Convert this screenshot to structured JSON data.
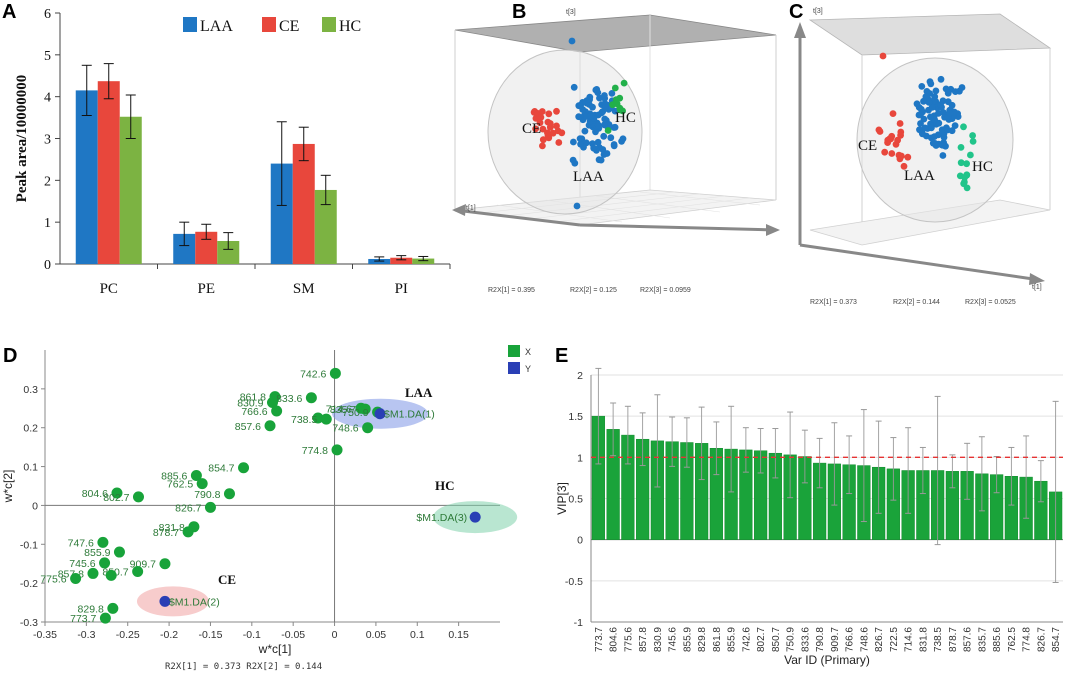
{
  "colors": {
    "laa": "#1f77c4",
    "ce": "#e8473c",
    "hc": "#7cb342",
    "pls_green": "#18a33a",
    "pls_blue": "#2a3fb5",
    "vip_bar": "#1aa33a",
    "dash": "#e63333",
    "hc_teal": "#21c48a"
  },
  "panels": {
    "a": {
      "letter": "A"
    },
    "b": {
      "letter": "B",
      "stats": [
        "R2X[1] = 0.395",
        "R2X[2] = 0.125",
        "R2X[3] = 0.0959"
      ],
      "axis": {
        "t1": "t[1]",
        "t3": "t[3]"
      },
      "labels": {
        "ce": "CE",
        "hc": "HC",
        "laa": "LAA"
      }
    },
    "c": {
      "letter": "C",
      "stats": [
        "R2X[1] = 0.373",
        "R2X[2] = 0.144",
        "R2X[3] = 0.0525"
      ],
      "axis": {
        "t1": "t[1]",
        "t3": "t[3]"
      },
      "labels": {
        "ce": "CE",
        "hc": "HC",
        "laa": "LAA"
      }
    },
    "d": {
      "letter": "D",
      "footer": "R2X[1] = 0.373 R2X[2] = 0.144",
      "legend": [
        {
          "key": "X",
          "color": "#18a33a"
        },
        {
          "key": "Y",
          "color": "#2a3fb5"
        }
      ],
      "group_labels": {
        "laa": "LAA",
        "hc": "HC",
        "ce": "CE"
      }
    },
    "e": {
      "letter": "E"
    }
  },
  "chart_data": [
    {
      "id": "A",
      "type": "bar",
      "title": "",
      "xlabel": "",
      "ylabel": "Peak area/10000000",
      "ylim": [
        0,
        6
      ],
      "yticks": [
        0,
        1,
        2,
        3,
        4,
        5,
        6
      ],
      "categories": [
        "PC",
        "PE",
        "SM",
        "PI"
      ],
      "series": [
        {
          "name": "LAA",
          "color": "#1f77c4",
          "values": [
            4.15,
            0.72,
            2.4,
            0.12
          ],
          "errors": [
            0.6,
            0.28,
            1.0,
            0.05
          ]
        },
        {
          "name": "CE",
          "color": "#e8473c",
          "values": [
            4.37,
            0.77,
            2.87,
            0.15
          ],
          "errors": [
            0.42,
            0.18,
            0.4,
            0.05
          ]
        },
        {
          "name": "HC",
          "color": "#7cb342",
          "values": [
            3.52,
            0.55,
            1.77,
            0.13
          ],
          "errors": [
            0.52,
            0.2,
            0.35,
            0.05
          ]
        }
      ],
      "legend": "top-right"
    },
    {
      "id": "D",
      "type": "scatter",
      "xlabel": "w*c[1]",
      "ylabel": "w*c[2]",
      "xlim": [
        -0.35,
        0.2
      ],
      "ylim": [
        -0.3,
        0.4
      ],
      "xticks": [
        -0.35,
        -0.3,
        -0.25,
        -0.2,
        -0.15,
        -0.1,
        -0.05,
        0,
        0.05,
        0.1,
        0.15
      ],
      "xtick_labels": [
        "-0.35",
        "-0.3",
        "-0.25",
        "-0.2",
        "-0.15",
        "-0.1",
        "-0.05",
        "0",
        "0.05",
        "0.1",
        "0.15"
      ],
      "yticks": [
        -0.3,
        -0.2,
        -0.1,
        0,
        0.1,
        0.2,
        0.3
      ],
      "ytick_labels": [
        "-0.3",
        "-0.2",
        "-0.1",
        "0",
        "0.1",
        "0.2",
        "0.3"
      ],
      "points": [
        {
          "label": "742.6",
          "x": 0.001,
          "y": 0.34
        },
        {
          "label": "861.8",
          "x": -0.072,
          "y": 0.28
        },
        {
          "label": "833.6",
          "x": -0.028,
          "y": 0.277
        },
        {
          "label": "830.9",
          "x": -0.075,
          "y": 0.265
        },
        {
          "label": "766.6",
          "x": -0.07,
          "y": 0.243
        },
        {
          "label": "714.6",
          "x": 0.032,
          "y": 0.25
        },
        {
          "label": "835.7",
          "x": 0.037,
          "y": 0.248
        },
        {
          "label": "750.9",
          "x": 0.052,
          "y": 0.24
        },
        {
          "label": "",
          "x": -0.02,
          "y": 0.225
        },
        {
          "label": "857.6",
          "x": -0.078,
          "y": 0.205
        },
        {
          "label": "738.5",
          "x": -0.01,
          "y": 0.222
        },
        {
          "label": "748.6",
          "x": 0.04,
          "y": 0.2
        },
        {
          "label": "774.8",
          "x": 0.003,
          "y": 0.143
        },
        {
          "label": "854.7",
          "x": -0.11,
          "y": 0.097
        },
        {
          "label": "885.6",
          "x": -0.167,
          "y": 0.077
        },
        {
          "label": "762.5",
          "x": -0.16,
          "y": 0.056
        },
        {
          "label": "790.8",
          "x": -0.127,
          "y": 0.03
        },
        {
          "label": "804.6",
          "x": -0.263,
          "y": 0.032
        },
        {
          "label": "802.7",
          "x": -0.237,
          "y": 0.022
        },
        {
          "label": "826.7",
          "x": -0.15,
          "y": -0.005
        },
        {
          "label": "831.8",
          "x": -0.17,
          "y": -0.055
        },
        {
          "label": "878.7",
          "x": -0.177,
          "y": -0.068
        },
        {
          "label": "747.6",
          "x": -0.28,
          "y": -0.095
        },
        {
          "label": "855.9",
          "x": -0.26,
          "y": -0.12
        },
        {
          "label": "909.7",
          "x": -0.205,
          "y": -0.15
        },
        {
          "label": "745.6",
          "x": -0.278,
          "y": -0.148
        },
        {
          "label": "850.7",
          "x": -0.238,
          "y": -0.17
        },
        {
          "label": "857.8",
          "x": -0.292,
          "y": -0.175
        },
        {
          "label": "",
          "x": -0.27,
          "y": -0.18
        },
        {
          "label": "775.6",
          "x": -0.313,
          "y": -0.188
        },
        {
          "label": "829.8",
          "x": -0.268,
          "y": -0.265
        },
        {
          "label": "773.7",
          "x": -0.277,
          "y": -0.29
        }
      ],
      "y_points": [
        {
          "label": "$M1.DA(1)",
          "x": 0.055,
          "y": 0.236,
          "group": "LAA"
        },
        {
          "label": "$M1.DA(3)",
          "x": 0.17,
          "y": -0.03,
          "group": "HC"
        },
        {
          "label": "$M1.DA(2)",
          "x": -0.205,
          "y": -0.247,
          "group": "CE"
        }
      ]
    },
    {
      "id": "E",
      "type": "bar",
      "xlabel": "Var ID (Primary)",
      "ylabel": "VIP[3]",
      "ylim": [
        -1,
        2
      ],
      "yticks": [
        -1,
        -0.5,
        0,
        0.5,
        1,
        1.5,
        2
      ],
      "ytick_labels": [
        "-1",
        "-0.5",
        "0",
        "0.5",
        "1",
        "1.5",
        "2"
      ],
      "threshold": 1,
      "categories": [
        "773.7",
        "804.6",
        "775.6",
        "857.8",
        "830.9",
        "745.6",
        "855.9",
        "829.8",
        "861.8",
        "855.9",
        "742.6",
        "802.7",
        "850.7",
        "750.9",
        "833.6",
        "790.8",
        "909.7",
        "766.6",
        "748.6",
        "826.7",
        "722.5",
        "714.6",
        "831.8",
        "738.5",
        "878.7",
        "857.6",
        "835.7",
        "885.6",
        "762.5",
        "774.8",
        "826.7",
        "854.7"
      ],
      "values": [
        1.5,
        1.34,
        1.27,
        1.22,
        1.2,
        1.19,
        1.18,
        1.17,
        1.11,
        1.1,
        1.09,
        1.08,
        1.05,
        1.03,
        1.01,
        0.93,
        0.92,
        0.91,
        0.9,
        0.88,
        0.86,
        0.84,
        0.84,
        0.84,
        0.83,
        0.83,
        0.8,
        0.79,
        0.77,
        0.76,
        0.71,
        0.58
      ],
      "errors": [
        0.58,
        0.32,
        0.35,
        0.32,
        0.56,
        0.3,
        0.3,
        0.44,
        0.32,
        0.52,
        0.27,
        0.27,
        0.3,
        0.52,
        0.32,
        0.3,
        0.5,
        0.35,
        0.68,
        0.56,
        0.38,
        0.52,
        0.28,
        0.9,
        0.2,
        0.34,
        0.45,
        0.22,
        0.35,
        0.5,
        0.25,
        1.1
      ]
    }
  ]
}
